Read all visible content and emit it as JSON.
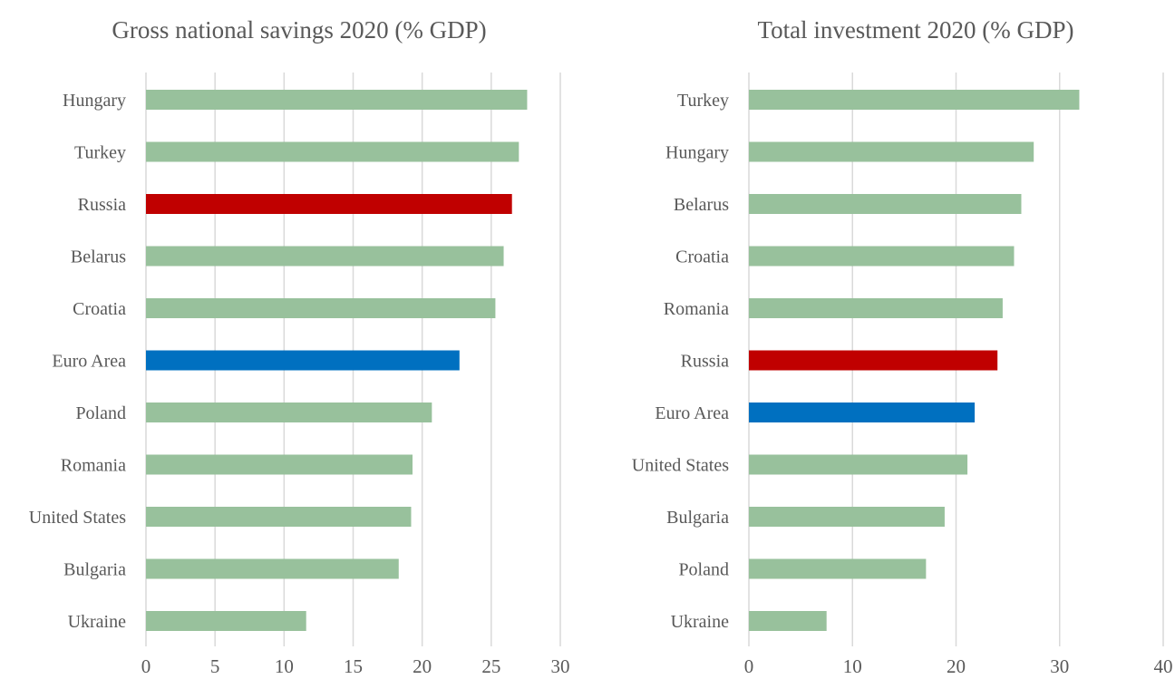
{
  "chart_data": [
    {
      "type": "bar",
      "orientation": "horizontal",
      "title": "Gross national savings 2020 (% GDP)",
      "categories": [
        "Hungary",
        "Turkey",
        "Russia",
        "Belarus",
        "Croatia",
        "Euro Area",
        "Poland",
        "Romania",
        "United States",
        "Bulgaria",
        "Ukraine"
      ],
      "values": [
        27.6,
        27.0,
        26.5,
        25.9,
        25.3,
        22.7,
        20.7,
        19.3,
        19.2,
        18.3,
        11.6
      ],
      "colors": [
        "#98c19c",
        "#98c19c",
        "#c00000",
        "#98c19c",
        "#98c19c",
        "#0070c0",
        "#98c19c",
        "#98c19c",
        "#98c19c",
        "#98c19c",
        "#98c19c"
      ],
      "xlim": [
        0,
        30
      ],
      "xticks": [
        0,
        5,
        10,
        15,
        20,
        25,
        30
      ],
      "grid": true
    },
    {
      "type": "bar",
      "orientation": "horizontal",
      "title": "Total investment 2020 (% GDP)",
      "categories": [
        "Turkey",
        "Hungary",
        "Belarus",
        "Croatia",
        "Romania",
        "Russia",
        "Euro Area",
        "United States",
        "Bulgaria",
        "Poland",
        "Ukraine"
      ],
      "values": [
        31.9,
        27.5,
        26.3,
        25.6,
        24.5,
        24.0,
        21.8,
        21.1,
        18.9,
        17.1,
        7.5
      ],
      "colors": [
        "#98c19c",
        "#98c19c",
        "#98c19c",
        "#98c19c",
        "#98c19c",
        "#c00000",
        "#0070c0",
        "#98c19c",
        "#98c19c",
        "#98c19c",
        "#98c19c"
      ],
      "xlim": [
        0,
        40
      ],
      "xticks": [
        0,
        10,
        20,
        30,
        40
      ],
      "grid": true
    }
  ]
}
